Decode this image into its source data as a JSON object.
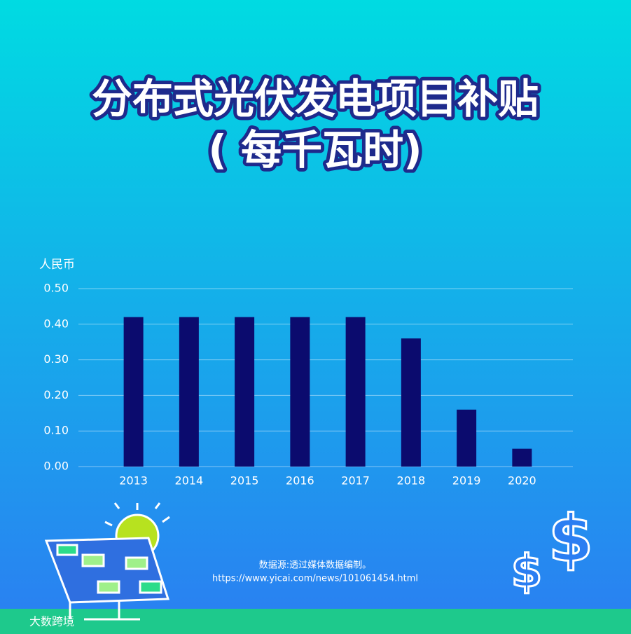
{
  "chart_data": {
    "type": "bar",
    "title": [
      "分布式光伏发电项目补贴",
      "( 每千瓦时)"
    ],
    "y_label": "人民币",
    "categories": [
      "2013",
      "2014",
      "2015",
      "2016",
      "2017",
      "2018",
      "2019",
      "2020"
    ],
    "values": [
      0.42,
      0.42,
      0.42,
      0.42,
      0.42,
      0.36,
      0.16,
      0.05
    ],
    "color": "#0b0b6e",
    "ylim": [
      0,
      0.5
    ],
    "yticks": [
      {
        "value": 0,
        "label": "0.00"
      },
      {
        "value": 0.1,
        "label": "0.10"
      },
      {
        "value": 0.2,
        "label": "0.20"
      },
      {
        "value": 0.3,
        "label": "0.30"
      },
      {
        "value": 0.4,
        "label": "0.40"
      },
      {
        "value": 0.5,
        "label": "0.50"
      }
    ],
    "grid": true,
    "source": [
      "数据源:透过媒体数据编制。",
      "https://www.yicai.com/news/101061454.html"
    ]
  },
  "footer": {
    "brand": "大数跨境"
  }
}
